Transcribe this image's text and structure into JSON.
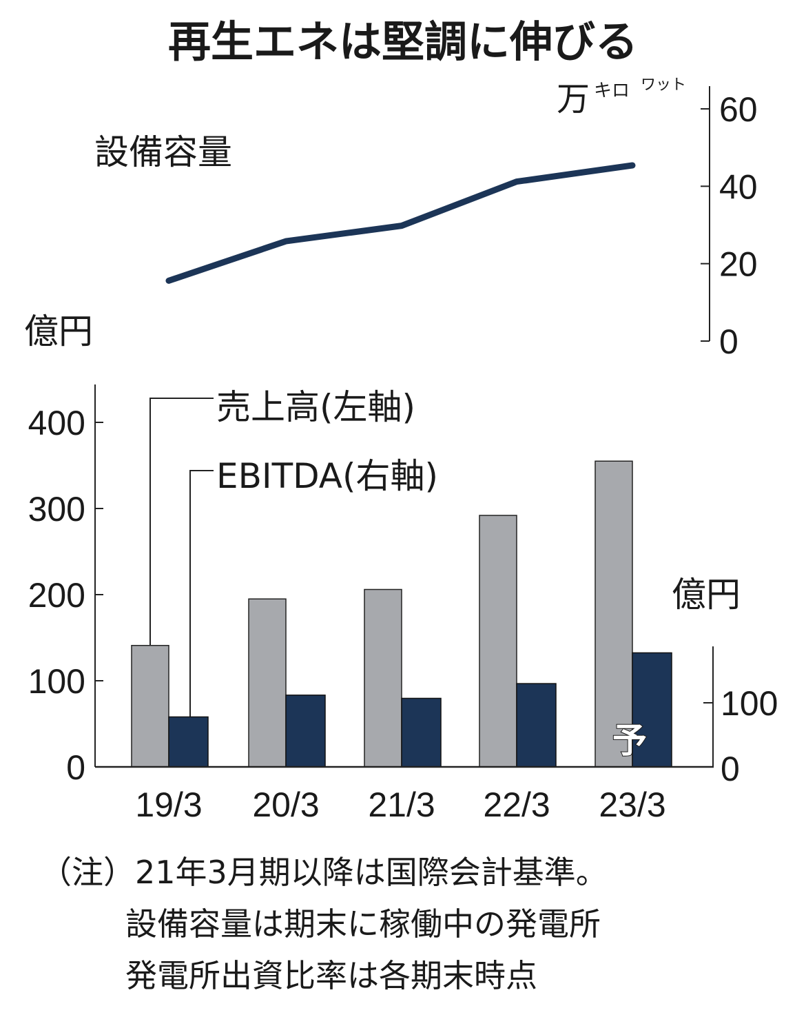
{
  "title": "再生エネは堅調に伸びる",
  "colors": {
    "line": "#1c3557",
    "sales": "#a7a9ad",
    "ebitda": "#1c3557",
    "axis": "#222222"
  },
  "chart_data": [
    {
      "type": "line",
      "title": "設備容量",
      "unit_label": {
        "main": "万",
        "sub1": "キロ",
        "sub2": "ワット"
      },
      "categories": [
        "19/3",
        "20/3",
        "21/3",
        "22/3",
        "23/3"
      ],
      "values": [
        15.6,
        25.8,
        29.8,
        41.2,
        45.4
      ],
      "ylim": [
        0,
        60
      ],
      "yticks": [
        "0",
        "20",
        "40",
        "60"
      ],
      "ytick_values": [
        0,
        20,
        40,
        60
      ],
      "axis_side": "right"
    },
    {
      "type": "bar",
      "categories": [
        "19/3",
        "20/3",
        "21/3",
        "22/3",
        "23/3"
      ],
      "left_unit": "億円",
      "right_unit": "億円",
      "series": [
        {
          "name": "売上高(左軸)",
          "axis": "left",
          "values": [
            141,
            195,
            206,
            292,
            355
          ]
        },
        {
          "name": "EBITDA(右軸)",
          "axis": "right",
          "values": [
            78,
            112,
            107,
            130,
            178
          ]
        }
      ],
      "left_ylim": [
        0,
        440
      ],
      "left_yticks": [
        "0",
        "100",
        "200",
        "300",
        "400"
      ],
      "left_ytick_values": [
        0,
        100,
        200,
        300,
        400
      ],
      "right_ylim": [
        0,
        188
      ],
      "right_yticks": [
        "0",
        "100"
      ],
      "right_ytick_values": [
        0,
        100
      ],
      "forecast_marker": "予",
      "legend": "top-left"
    }
  ],
  "notes": [
    "（注）21年3月期以降は国際会計基準。",
    "設備容量は期末に稼働中の発電所",
    "発電所出資比率は各期末時点"
  ]
}
